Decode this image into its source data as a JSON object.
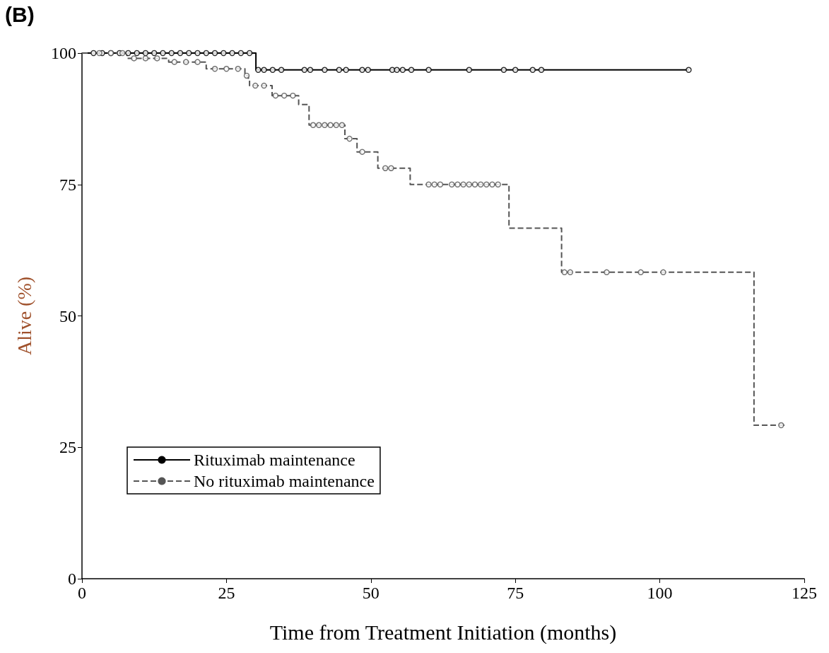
{
  "chart_data": {
    "type": "step",
    "title": "(B)",
    "xlabel": "Time from Treatment Initiation (months)",
    "ylabel": "Alive (%)",
    "xlim": [
      0,
      125
    ],
    "xticks": [
      0,
      25,
      50,
      75,
      100,
      125
    ],
    "ylim": [
      0,
      100
    ],
    "yticks": [
      0,
      25,
      50,
      75,
      100
    ],
    "grid": false,
    "legend": "bottom left",
    "marker": "none",
    "series": [
      {
        "name": "Rituximab maintenance",
        "line_style": "solid",
        "color": "#000000",
        "x": [
          0,
          30.1,
          105.1
        ],
        "values": [
          100,
          96.8,
          96.8
        ]
      },
      {
        "name": "No rituximab maintenance",
        "line_style": "dashed",
        "color": "#555555",
        "x": [
          0,
          7.8,
          15,
          21.5,
          28.2,
          28.8,
          29,
          32.9,
          37.5,
          39.3,
          45.5,
          47.6,
          51.2,
          56.8,
          73.9,
          83,
          116.3,
          121.8
        ],
        "values": [
          100,
          99,
          98.3,
          97,
          95.7,
          95,
          93.8,
          91.9,
          90.2,
          86.3,
          83.7,
          81.2,
          78.1,
          75,
          66.7,
          58.3,
          29.2,
          29.2
        ]
      },
      {
        "type": "scatter",
        "marker": "circle",
        "color": "#000000",
        "x": [
          2,
          3.5,
          5,
          6.5,
          8,
          9.5,
          11,
          12.5,
          14,
          15.5,
          17,
          18.5,
          20,
          21.5,
          23,
          24.5,
          26,
          27.5,
          29,
          30.5,
          31.5,
          33,
          34.5,
          38.5,
          39.5,
          42,
          44.5,
          45.7,
          48.5,
          49.5,
          53.7,
          54.5,
          55.5,
          57,
          60,
          67,
          73,
          75,
          78,
          79.5,
          105
        ],
        "values": [
          100,
          100,
          100,
          100,
          100,
          100,
          100,
          100,
          100,
          100,
          100,
          100,
          100,
          100,
          100,
          100,
          100,
          100,
          100,
          96.8,
          96.8,
          96.8,
          96.8,
          96.8,
          96.8,
          96.8,
          96.8,
          96.8,
          96.8,
          96.8,
          96.8,
          96.8,
          96.8,
          96.8,
          96.8,
          96.8,
          96.8,
          96.8,
          96.8,
          96.8,
          96.8
        ]
      },
      {
        "type": "scatter",
        "marker": "circle",
        "color": "#555555",
        "x": [
          3,
          5,
          7,
          9,
          11,
          13,
          16,
          18,
          20,
          23,
          25,
          27,
          28.5,
          30,
          31.5,
          33.5,
          35,
          36.5,
          40,
          41,
          42,
          43,
          44,
          45,
          46.3,
          48.5,
          52.5,
          53.5,
          60,
          61,
          62,
          64,
          65,
          66,
          67,
          68,
          69,
          70,
          71,
          72,
          83.5,
          84.5,
          90.8,
          96.7,
          100.6,
          121
        ],
        "values": [
          100,
          100,
          100,
          99,
          99,
          99,
          98.3,
          98.3,
          98.3,
          97,
          97,
          97,
          95.7,
          93.8,
          93.8,
          91.9,
          91.9,
          91.9,
          86.3,
          86.3,
          86.3,
          86.3,
          86.3,
          86.3,
          83.7,
          81.2,
          78.1,
          78.1,
          75,
          75,
          75,
          75,
          75,
          75,
          75,
          75,
          75,
          75,
          75,
          75,
          58.3,
          58.3,
          58.3,
          58.3,
          58.3,
          29.2
        ]
      }
    ]
  }
}
